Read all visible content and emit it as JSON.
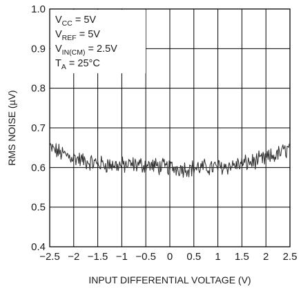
{
  "chart_data": {
    "type": "line",
    "xlabel": "INPUT DIFFERENTIAL VOLTAGE (V)",
    "ylabel": "RMS NOISE (µV)",
    "xlim": [
      -2.5,
      2.5
    ],
    "ylim": [
      0.4,
      1.0
    ],
    "x_ticks": [
      -2.5,
      -2,
      -1.5,
      -1,
      -0.5,
      0,
      0.5,
      1,
      1.5,
      2,
      2.5
    ],
    "x_tick_labels": [
      "−2.5",
      "−2",
      "−1.5",
      "−1",
      "−0.5",
      "0",
      "0.5",
      "1",
      "1.5",
      "2",
      "2.5"
    ],
    "y_ticks": [
      0.4,
      0.5,
      0.6,
      0.7,
      0.8,
      0.9,
      1.0
    ],
    "y_tick_labels": [
      "0.4",
      "0.5",
      "0.6",
      "0.7",
      "0.8",
      "0.9",
      "1.0"
    ],
    "grid": true,
    "annotations": [
      {
        "main": "V",
        "sub": "CC",
        "rest": " = 5V"
      },
      {
        "main": "V",
        "sub": "REF",
        "rest": " = 5V"
      },
      {
        "main": "V",
        "sub": "IN(CM)",
        "rest": " = 2.5V"
      },
      {
        "main": "T",
        "sub": "A",
        "rest": " = 25°C"
      }
    ],
    "series": [
      {
        "color": "#333333",
        "x": [
          -2.5,
          -2.25,
          -2.0,
          -1.75,
          -1.5,
          -1.25,
          -1.0,
          -0.75,
          -0.5,
          -0.25,
          0.0,
          0.25,
          0.5,
          0.75,
          1.0,
          1.25,
          1.5,
          1.75,
          2.0,
          2.25,
          2.5
        ],
        "y": [
          0.65,
          0.635,
          0.625,
          0.615,
          0.61,
          0.607,
          0.605,
          0.607,
          0.606,
          0.603,
          0.6,
          0.598,
          0.598,
          0.6,
          0.601,
          0.604,
          0.609,
          0.615,
          0.622,
          0.633,
          0.65
        ]
      }
    ]
  }
}
